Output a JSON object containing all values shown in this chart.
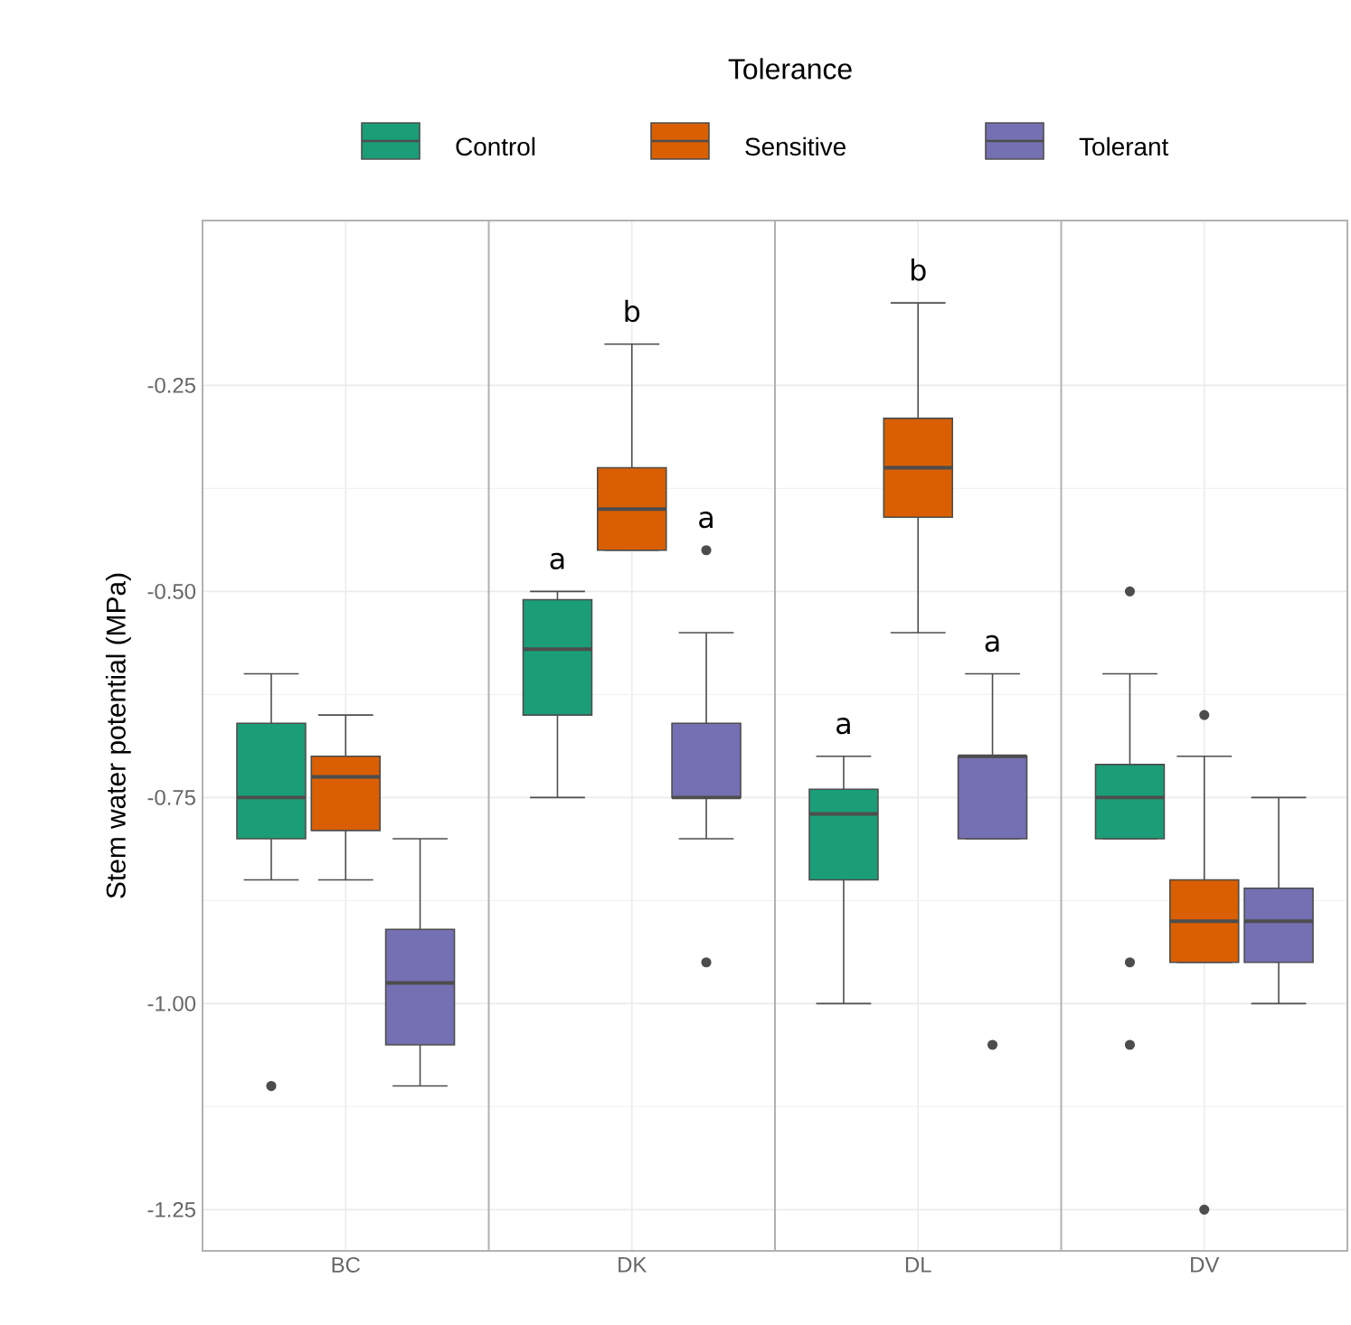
{
  "chart_data": {
    "type": "box",
    "ylabel": "Stem water potential (MPa)",
    "legend_title": "Tolerance",
    "legend": "top",
    "grid": true,
    "categories": [
      "BC",
      "DK",
      "DL",
      "DV"
    ],
    "ylim": [
      -1.3,
      -0.05
    ],
    "yticks": [
      -0.25,
      {
        "value": -0.5,
        "label": "-0.50"
      },
      -0.75,
      {
        "value": -1.0,
        "label": "-1.00"
      },
      -1.25
    ],
    "series": [
      {
        "name": "Control",
        "color": "#1b9e77",
        "boxes": [
          {
            "low": -0.85,
            "q1": -0.8,
            "median": -0.75,
            "q3": -0.66,
            "high": -0.6,
            "outliers": [
              -1.1
            ]
          },
          {
            "low": -0.75,
            "q1": -0.65,
            "median": -0.57,
            "q3": -0.51,
            "high": -0.5
          },
          {
            "low": -1.0,
            "q1": -0.85,
            "median": -0.77,
            "q3": -0.74,
            "high": -0.7
          },
          {
            "low": -0.8,
            "q1": -0.8,
            "median": -0.75,
            "q3": -0.71,
            "high": -0.6,
            "outliers": [
              -0.5,
              -0.95,
              -1.05
            ]
          }
        ]
      },
      {
        "name": "Sensitive",
        "color": "#d95f02",
        "boxes": [
          {
            "low": -0.85,
            "q1": -0.79,
            "median": -0.725,
            "q3": -0.7,
            "high": -0.65
          },
          {
            "low": -0.45,
            "q1": -0.45,
            "median": -0.4,
            "q3": -0.35,
            "high": -0.2
          },
          {
            "low": -0.55,
            "q1": -0.41,
            "median": -0.35,
            "q3": -0.29,
            "high": -0.15
          },
          {
            "low": -0.95,
            "q1": -0.95,
            "median": -0.9,
            "q3": -0.85,
            "high": -0.7,
            "outliers": [
              -0.65,
              -1.25
            ]
          }
        ]
      },
      {
        "name": "Tolerant",
        "color": "#7570b3",
        "boxes": [
          {
            "low": -1.1,
            "q1": -1.05,
            "median": -0.975,
            "q3": -0.91,
            "high": -0.8
          },
          {
            "low": -0.8,
            "q1": -0.75,
            "median": -0.75,
            "q3": -0.66,
            "high": -0.55,
            "outliers": [
              -0.45,
              -0.95
            ]
          },
          {
            "low": -0.8,
            "q1": -0.8,
            "median": -0.7,
            "q3": -0.7,
            "high": -0.6,
            "outliers": [
              -1.05
            ]
          },
          {
            "low": -1.0,
            "q1": -0.95,
            "median": -0.9,
            "q3": -0.86,
            "high": -0.75
          }
        ]
      }
    ],
    "annotations": [
      "a",
      "b",
      "a",
      "a",
      "b",
      "a"
    ]
  }
}
